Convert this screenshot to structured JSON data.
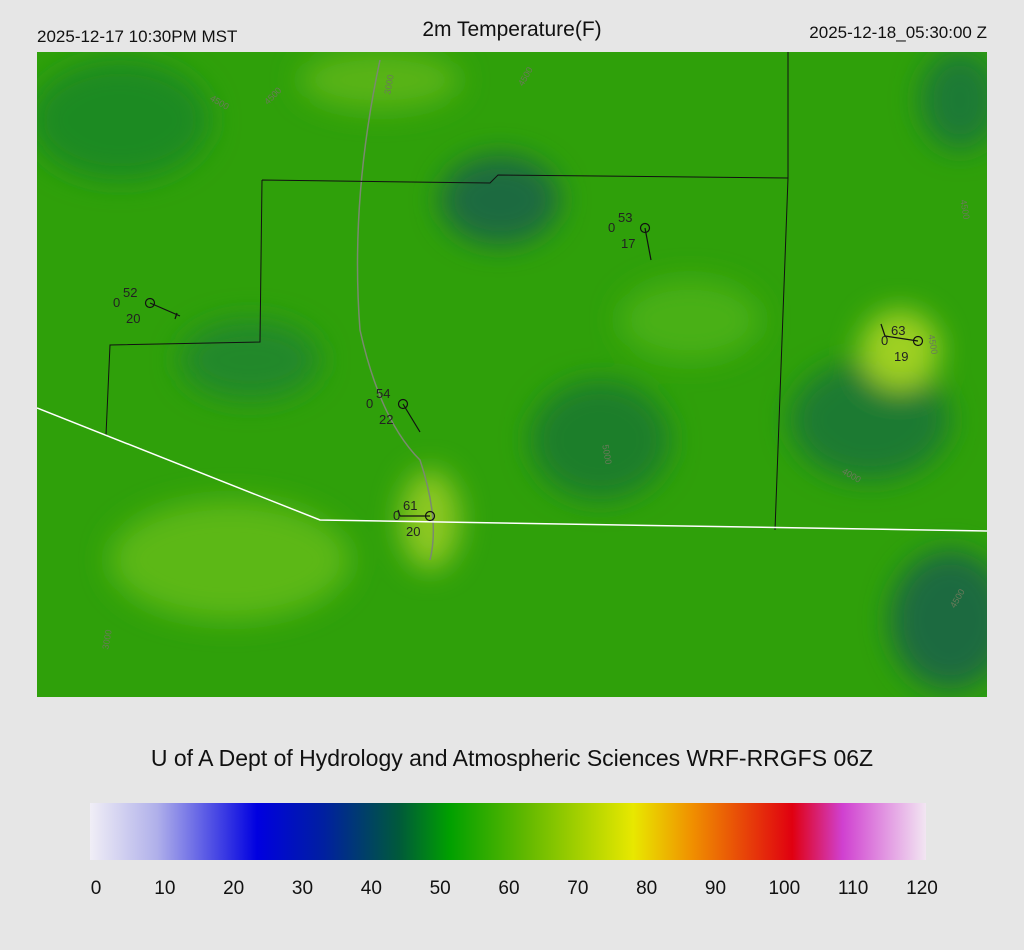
{
  "header": {
    "local_time": "2025-12-17 10:30PM MST",
    "title": "2m Temperature(F)",
    "utc_time": "2025-12-18_05:30:00 Z"
  },
  "map": {
    "stations": [
      {
        "temperature": "52",
        "left": "0",
        "dewpoint": "20"
      },
      {
        "temperature": "53",
        "left": "0",
        "dewpoint": "17"
      },
      {
        "temperature": "54",
        "left": "0",
        "dewpoint": "22"
      },
      {
        "temperature": "61",
        "left": "0",
        "dewpoint": "20"
      },
      {
        "temperature": "63",
        "left": "0",
        "dewpoint": "19"
      }
    ],
    "contour_labels": [
      "3000",
      "4500",
      "4500",
      "4500",
      "5000",
      "3000",
      "4500",
      "4500",
      "4000",
      "4500"
    ]
  },
  "footer": {
    "credit": "U of A Dept of Hydrology and Atmospheric Sciences WRF-RRGFS 06Z"
  },
  "colorbar": {
    "ticks": [
      0,
      10,
      20,
      30,
      40,
      50,
      60,
      70,
      80,
      90,
      100,
      110,
      120
    ]
  }
}
